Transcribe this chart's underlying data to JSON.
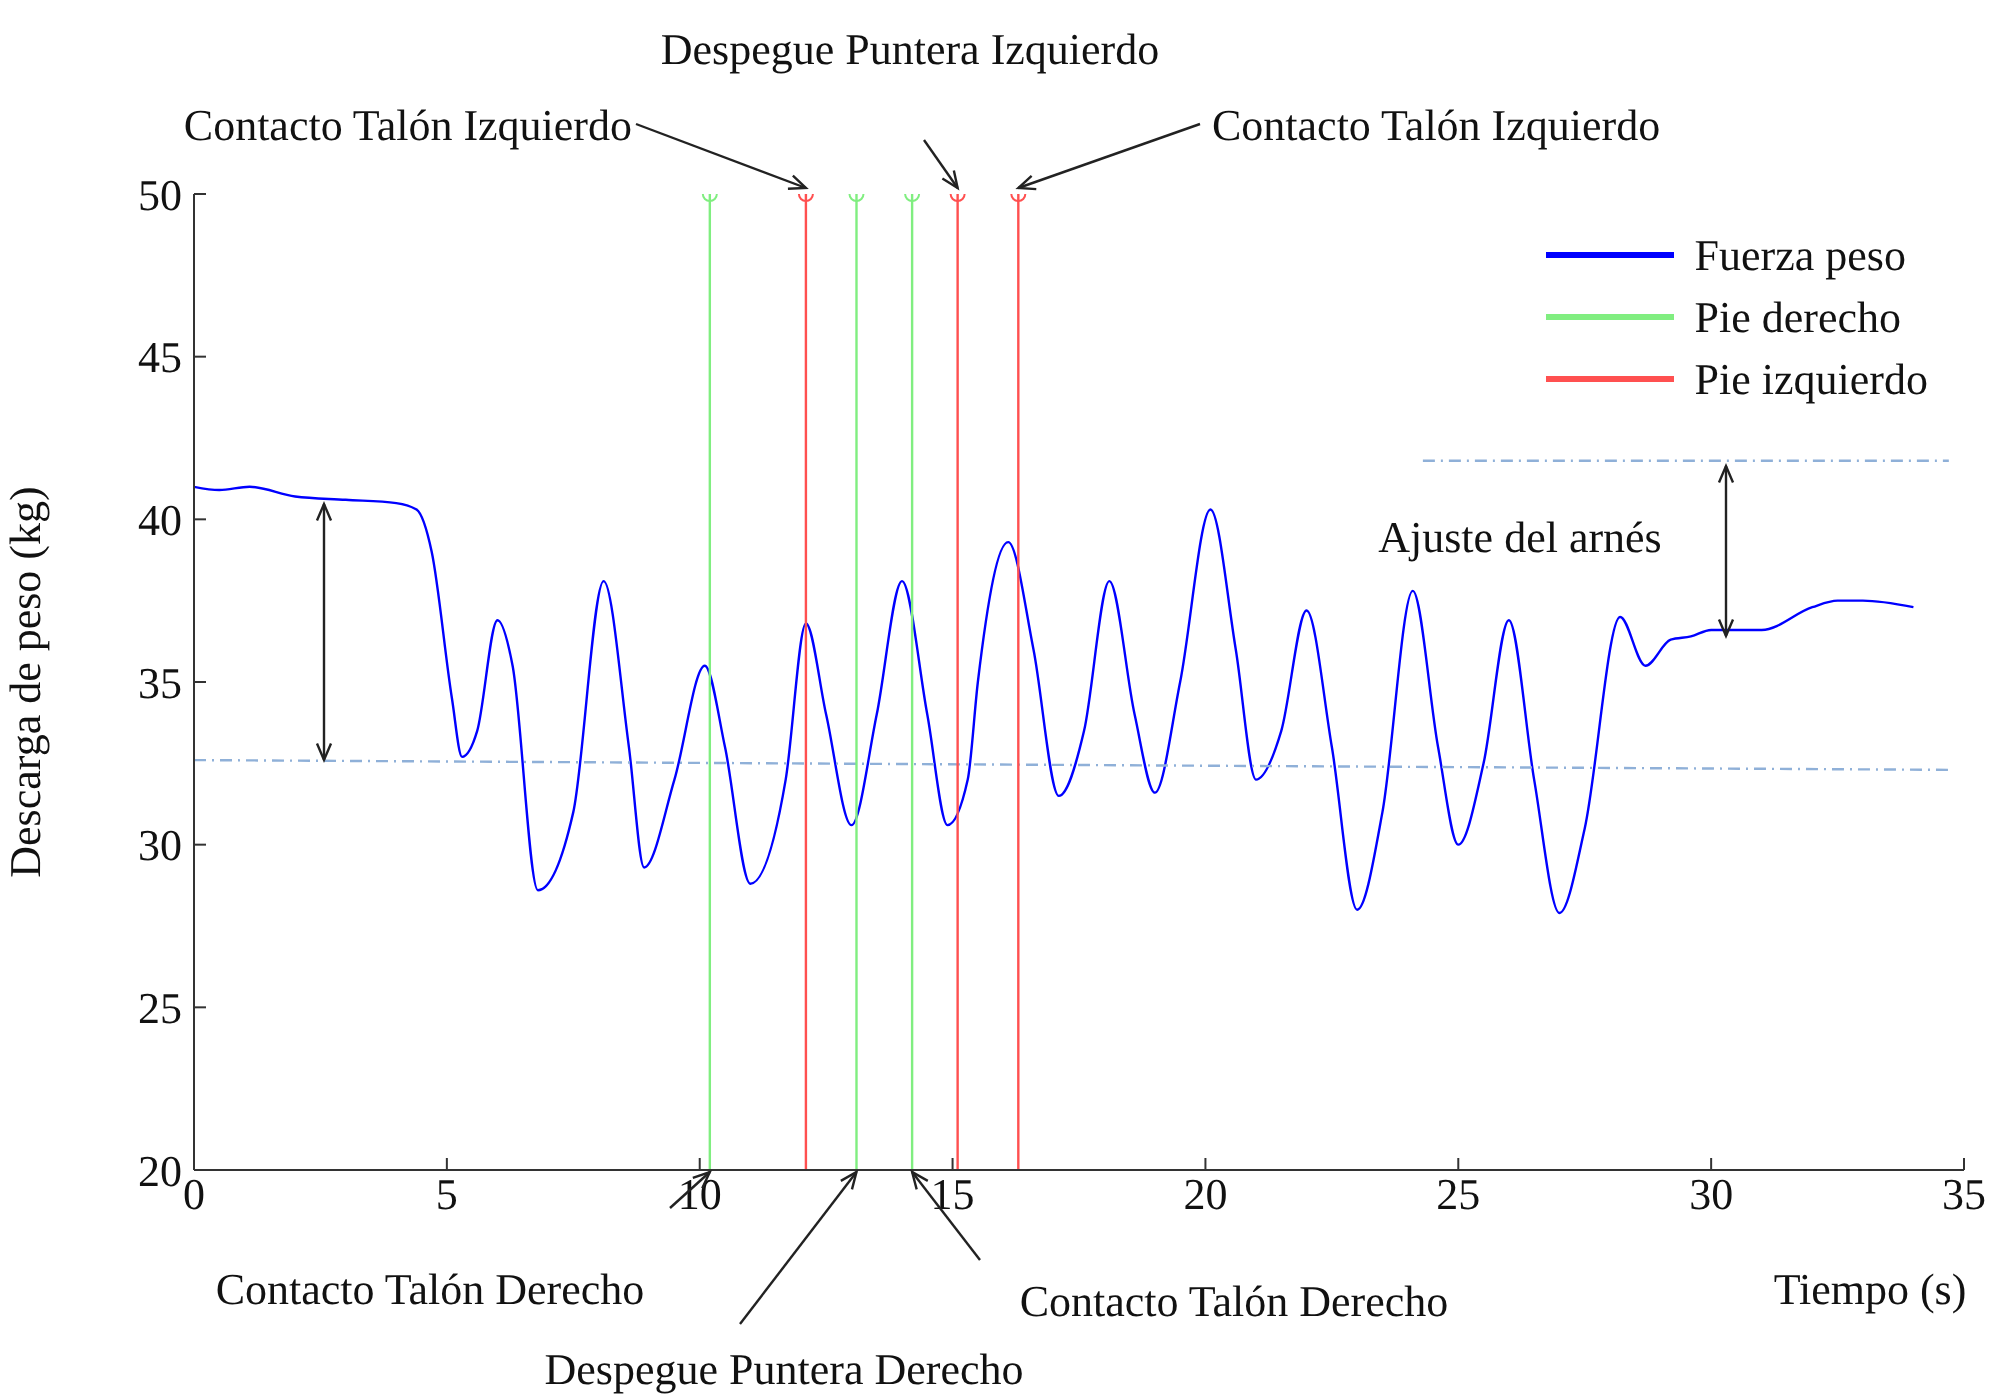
{
  "chart_data": {
    "type": "line",
    "xlabel": "Tiempo (s)",
    "ylabel": "Descarga de peso (kg)",
    "xlim": [
      0,
      35
    ],
    "ylim": [
      20,
      50
    ],
    "xticks": [
      0,
      5,
      10,
      15,
      20,
      25,
      30,
      35
    ],
    "yticks": [
      20,
      25,
      30,
      35,
      40,
      45,
      50
    ],
    "grid": false,
    "legend": "top right",
    "marker": "none",
    "line_style": "solid",
    "series": [
      {
        "name": "Fuerza peso",
        "color": "#0000ff",
        "x": [
          0,
          0.5,
          1.1,
          2,
          3,
          4,
          4.4,
          4.7,
          5.1,
          5.3,
          5.6,
          6.0,
          6.3,
          6.8,
          7.5,
          8.1,
          8.6,
          8.9,
          9.5,
          10.1,
          10.5,
          11.0,
          11.7,
          12.1,
          12.5,
          13.0,
          13.5,
          14.0,
          14.5,
          14.9,
          15.3,
          15.5,
          16.1,
          16.6,
          17.1,
          17.6,
          18.1,
          18.6,
          19.0,
          19.5,
          20.1,
          20.6,
          21.0,
          21.5,
          22.0,
          22.5,
          23.0,
          23.5,
          24.1,
          24.6,
          25.0,
          25.5,
          26.0,
          26.5,
          27.0,
          27.5,
          28.2,
          28.7,
          29.2,
          29.6,
          30,
          31,
          32,
          32.5,
          33,
          34
        ],
        "values": [
          41.0,
          40.9,
          41.0,
          40.7,
          40.6,
          40.5,
          40.3,
          39.0,
          34.5,
          32.7,
          33.5,
          36.9,
          35.5,
          28.6,
          31.0,
          38.1,
          33,
          29.3,
          32,
          35.5,
          33,
          28.8,
          32,
          36.8,
          34,
          30.6,
          34,
          38.1,
          34,
          30.6,
          32,
          35,
          39.3,
          36,
          31.5,
          33.5,
          38.1,
          34,
          31.6,
          35,
          40.3,
          36,
          32.0,
          33.5,
          37.2,
          33,
          28.0,
          31,
          37.8,
          33,
          30.0,
          32.5,
          36.9,
          32,
          27.9,
          30.5,
          37.0,
          35.5,
          36.3,
          36.4,
          36.6,
          36.6,
          37.3,
          37.5,
          37.5,
          37.3
        ]
      },
      {
        "color": "#8fb0d8",
        "line_style": "dashed",
        "x": [
          0,
          34.7
        ],
        "values": [
          32.6,
          32.3
        ]
      },
      {
        "color": "#8fb0d8",
        "line_style": "dashed",
        "x": [
          24.3,
          34.7
        ],
        "values": [
          41.8,
          41.8
        ]
      },
      {
        "name": "Pie derecho",
        "color": "#80ee80",
        "x": [
          10.2,
          10.2
        ],
        "values": [
          20,
          50
        ]
      },
      {
        "color": "#80ee80",
        "x": [
          13.1,
          13.1
        ],
        "values": [
          20,
          50
        ]
      },
      {
        "color": "#80ee80",
        "x": [
          14.2,
          14.2
        ],
        "values": [
          20,
          50
        ]
      },
      {
        "name": "Pie izquierdo",
        "color": "#ff5050",
        "x": [
          12.1,
          12.1
        ],
        "values": [
          20,
          50
        ]
      },
      {
        "color": "#ff5050",
        "x": [
          15.1,
          15.1
        ],
        "values": [
          20,
          50
        ]
      },
      {
        "color": "#ff5050",
        "x": [
          16.3,
          16.3
        ],
        "values": [
          20,
          50
        ]
      },
      {
        "type": "scatter",
        "marker": "circle",
        "color": "#80ee80",
        "x": [
          10.2,
          13.1,
          14.2
        ],
        "values": [
          50,
          50,
          50
        ]
      },
      {
        "type": "scatter",
        "marker": "circle",
        "color": "#ff5050",
        "x": [
          12.1,
          15.1,
          16.3
        ],
        "values": [
          50,
          50,
          50
        ]
      }
    ],
    "annotations": [
      {
        "text": "Contacto Talón Izquierdo",
        "x": 12.1,
        "y": 50
      },
      {
        "text": "Despegue Puntera Izquierdo",
        "x": 15.1,
        "y": 50
      },
      {
        "text": "Contacto Talón Izquierdo",
        "x": 16.3,
        "y": 50
      },
      {
        "text": "Contacto Talón Derecho",
        "x": 10.2,
        "y": 20
      },
      {
        "text": "Despegue Puntera Derecho",
        "x": 13.1,
        "y": 20
      },
      {
        "text": "Contacto Talón Derecho",
        "x": 14.2,
        "y": 20
      },
      "Ajuste del arnés"
    ]
  }
}
